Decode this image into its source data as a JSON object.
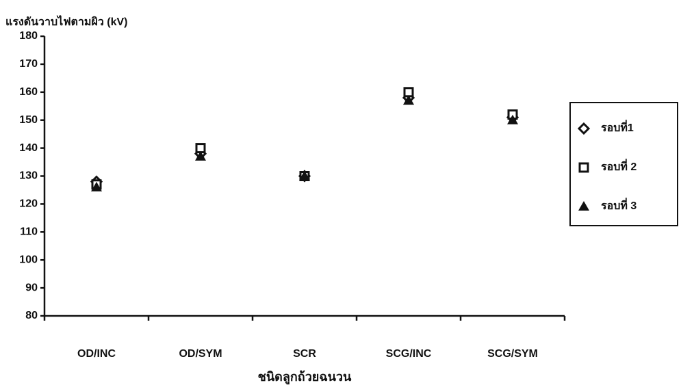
{
  "chart_data": {
    "type": "scatter",
    "y_label": "แรงดันวาบไฟตามผิว (kV)",
    "x_label": "ชนิดลูกถ้วยฉนวน",
    "categories": [
      "OD/INC",
      "OD/SYM",
      "SCR",
      "SCG/INC",
      "SCG/SYM"
    ],
    "series": [
      {
        "name": "รอบที่1",
        "marker": "diamond",
        "color": "#111111",
        "values": [
          128,
          138,
          130,
          158,
          151
        ]
      },
      {
        "name": "รอบที่ 2",
        "marker": "square",
        "color": "#111111",
        "values": [
          127,
          140,
          130,
          160,
          152
        ]
      },
      {
        "name": "รอบที่ 3",
        "marker": "triangle",
        "color": "#111111",
        "values": [
          126,
          137,
          130,
          157,
          150
        ]
      }
    ],
    "ylim": [
      80,
      180
    ],
    "yticks": [
      80,
      90,
      100,
      110,
      120,
      130,
      140,
      150,
      160,
      170,
      180
    ],
    "legend": "right"
  }
}
